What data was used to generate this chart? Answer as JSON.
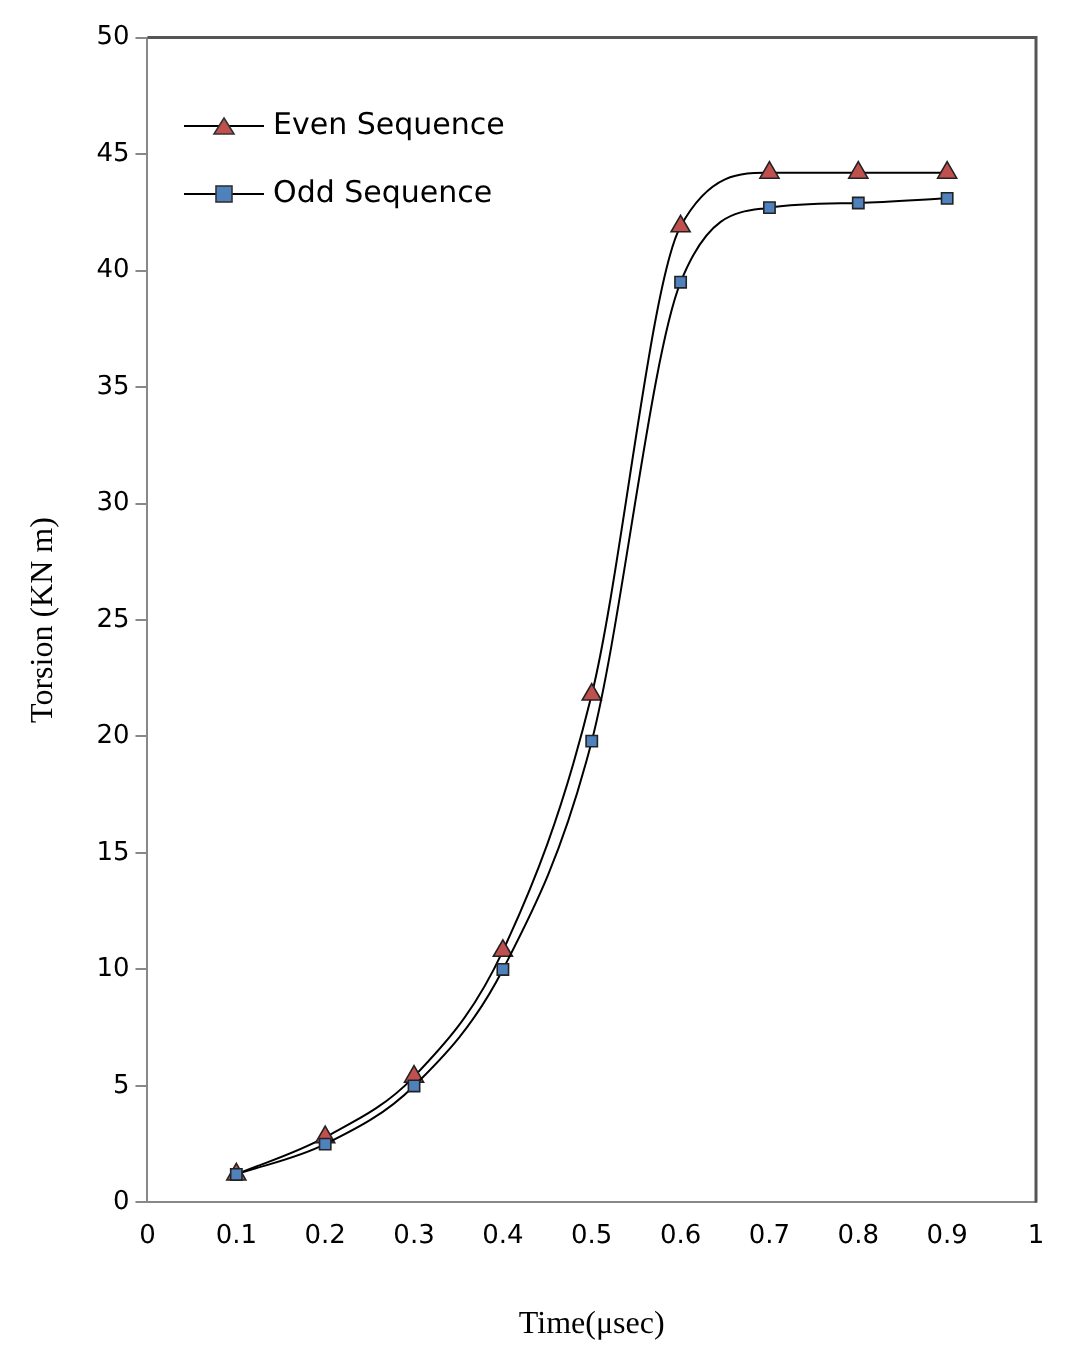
{
  "chart_data": {
    "type": "line",
    "xlabel": "Time(μsec)",
    "ylabel": "Torsion (KN m)",
    "x": [
      0.1,
      0.2,
      0.3,
      0.4,
      0.5,
      0.6,
      0.7,
      0.8,
      0.9
    ],
    "series": [
      {
        "name": "Even Sequence",
        "color": "#c0504d",
        "marker": "triangle",
        "values": [
          1.2,
          2.8,
          5.4,
          10.8,
          21.8,
          41.9,
          44.2,
          44.2,
          44.2
        ]
      },
      {
        "name": "Odd Sequence",
        "color": "#4f81bd",
        "marker": "square",
        "values": [
          1.2,
          2.5,
          5.0,
          10.0,
          19.8,
          39.5,
          42.7,
          42.9,
          43.1
        ]
      }
    ],
    "xlim": [
      0,
      1
    ],
    "xticks": [
      0,
      0.1,
      0.2,
      0.3,
      0.4,
      0.5,
      0.6,
      0.7,
      0.8,
      0.9,
      1
    ],
    "ylim": [
      0,
      50
    ],
    "yticks": [
      0,
      5,
      10,
      15,
      20,
      25,
      30,
      35,
      40,
      45,
      50
    ],
    "grid": false,
    "legend": "top left",
    "line_style": "solid"
  }
}
